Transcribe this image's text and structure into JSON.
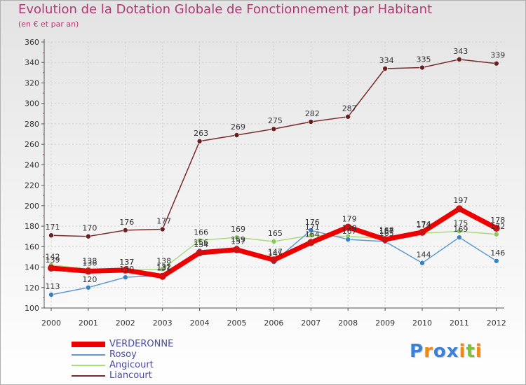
{
  "title": "Evolution de la Dotation Globale de Fonctionnement par Habitant",
  "subtitle": "(en € et par an)",
  "brand": {
    "text": "Proxiti",
    "letters": [
      {
        "ch": "P",
        "color": "#3b82d6"
      },
      {
        "ch": "r",
        "color": "#ef8a16"
      },
      {
        "ch": "o",
        "color": "#3b82d6"
      },
      {
        "ch": "x",
        "color": "#3b82d6"
      },
      {
        "ch": "i",
        "color": "#ef8a16"
      },
      {
        "ch": "t",
        "color": "#7fbf3a"
      },
      {
        "ch": "i",
        "color": "#ef8a16"
      }
    ]
  },
  "chart_data": {
    "type": "line",
    "title": "Evolution de la Dotation Globale de Fonctionnement par Habitant",
    "ylabel": "(en € et par an)",
    "xlabel": "",
    "x": [
      "2000",
      "2001",
      "2002",
      "2003",
      "2004",
      "2005",
      "2006",
      "2007",
      "2008",
      "2009",
      "2010",
      "2011",
      "2012"
    ],
    "ylim": [
      100,
      360
    ],
    "yticks": [
      "100",
      "120",
      "140",
      "160",
      "180",
      "200",
      "220",
      "240",
      "260",
      "280",
      "300",
      "320",
      "340",
      "360"
    ],
    "grid": true,
    "legend_position": "bottom-left",
    "series": [
      {
        "name": "VERDERONNE",
        "color": "#ee0000",
        "dot": "#d01010",
        "values": [
          139,
          136,
          137,
          131,
          154,
          157,
          147,
          164,
          179,
          167,
          174,
          197,
          178
        ],
        "labels": [
          "139",
          "136",
          "137",
          "131",
          "154",
          "157",
          "147",
          "164",
          "179",
          "167",
          "174",
          "197",
          "178"
        ]
      },
      {
        "name": "Rosoy",
        "color": "#5f9bd0",
        "dot": "#3a7fc2",
        "values": [
          113,
          120,
          130,
          132,
          156,
          159,
          145,
          176,
          167,
          165,
          144,
          169,
          146
        ],
        "labels": [
          "113",
          "120",
          "130",
          "132",
          "156",
          "159",
          "145",
          "176",
          "167",
          "165",
          "144",
          "169",
          "146"
        ]
      },
      {
        "name": "Angicourt",
        "color": "#a6dc7c",
        "dot": "#86c85a",
        "values": [
          142,
          138,
          137,
          138,
          166,
          169,
          165,
          171,
          170,
          168,
          173,
          175,
          172
        ],
        "labels": [
          "142",
          "138",
          "137",
          "138",
          "166",
          "169",
          "165",
          "171",
          "170",
          "168",
          "173",
          "175",
          "172"
        ]
      },
      {
        "name": "Liancourt",
        "color": "#7a2a2a",
        "dot": "#6a1f1f",
        "values": [
          171,
          170,
          176,
          177,
          263,
          269,
          275,
          282,
          287,
          334,
          335,
          343,
          339
        ],
        "labels": [
          "171",
          "170",
          "176",
          "177",
          "263",
          "269",
          "275",
          "282",
          "287",
          "334",
          "335",
          "343",
          "339"
        ]
      }
    ]
  }
}
